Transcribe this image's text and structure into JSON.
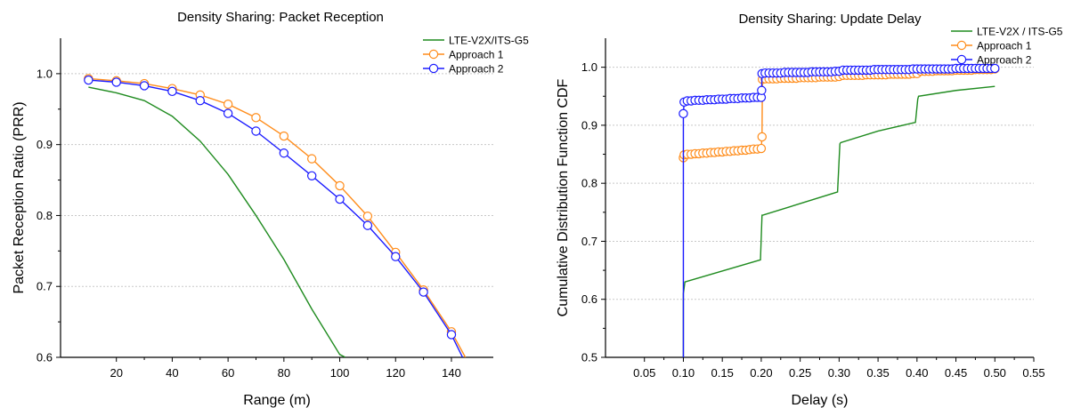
{
  "chart_data": [
    {
      "type": "line",
      "title": "Density Sharing: Packet Reception",
      "xlabel": "Range (m)",
      "ylabel": "Packet Reception Ratio (PRR)",
      "xlim": [
        0,
        155
      ],
      "ylim": [
        0.6,
        1.05
      ],
      "xticks": [
        20,
        40,
        60,
        80,
        100,
        120,
        140
      ],
      "yticks": [
        0.6,
        0.7,
        0.8,
        0.9,
        1.0
      ],
      "xtick_labels": [
        "20",
        "40",
        "60",
        "80",
        "100",
        "120",
        "140"
      ],
      "ytick_labels": [
        "0.6",
        "0.7",
        "0.8",
        "0.9",
        "1.0"
      ],
      "grid": "horizontal dotted",
      "legend_position": "top-right",
      "series": [
        {
          "name": "LTE-V2X/ITS-G5",
          "color": "#1f8b1f",
          "marker": "none",
          "x": [
            10,
            20,
            30,
            40,
            50,
            60,
            70,
            80,
            90,
            100,
            102
          ],
          "y": [
            0.981,
            0.973,
            0.962,
            0.94,
            0.905,
            0.858,
            0.8,
            0.738,
            0.668,
            0.604,
            0.6
          ]
        },
        {
          "name": "Approach 1",
          "color": "#ff8c1a",
          "marker": "circle",
          "x": [
            10,
            20,
            30,
            40,
            50,
            60,
            70,
            80,
            90,
            100,
            110,
            120,
            130,
            140,
            145
          ],
          "y": [
            0.993,
            0.99,
            0.986,
            0.979,
            0.97,
            0.957,
            0.938,
            0.912,
            0.88,
            0.842,
            0.799,
            0.748,
            0.695,
            0.636,
            0.6
          ]
        },
        {
          "name": "Approach 2",
          "color": "#1a1aff",
          "marker": "circle",
          "x": [
            10,
            20,
            30,
            40,
            50,
            60,
            70,
            80,
            90,
            100,
            110,
            120,
            130,
            140,
            144
          ],
          "y": [
            0.991,
            0.988,
            0.983,
            0.975,
            0.962,
            0.944,
            0.919,
            0.888,
            0.856,
            0.823,
            0.786,
            0.742,
            0.692,
            0.632,
            0.6
          ]
        }
      ]
    },
    {
      "type": "line",
      "title": "Density Sharing: Update Delay",
      "xlabel": "Delay (s)",
      "ylabel": "Cumulative Distribution Function CDF",
      "xlim": [
        0,
        0.55
      ],
      "ylim": [
        0.5,
        1.05
      ],
      "xticks": [
        0.05,
        0.1,
        0.15,
        0.2,
        0.25,
        0.3,
        0.35,
        0.4,
        0.45,
        0.5,
        0.55
      ],
      "yticks": [
        0.5,
        0.6,
        0.7,
        0.8,
        0.9,
        1.0
      ],
      "xtick_labels": [
        "0.05",
        "0.10",
        "0.15",
        "0.20",
        "0.25",
        "0.30",
        "0.35",
        "0.40",
        "0.45",
        "0.50",
        "0.55"
      ],
      "ytick_labels": [
        "0.5",
        "0.6",
        "0.7",
        "0.8",
        "0.9",
        "1.0"
      ],
      "grid": "horizontal dotted",
      "legend_position": "top-right",
      "series": [
        {
          "name": "LTE-V2X / ITS-G5",
          "color": "#1f8b1f",
          "marker": "none",
          "x": [
            0.1,
            0.1,
            0.102,
            0.199,
            0.201,
            0.202,
            0.298,
            0.301,
            0.302,
            0.35,
            0.398,
            0.401,
            0.402,
            0.45,
            0.5
          ],
          "y": [
            0.5,
            0.61,
            0.63,
            0.668,
            0.745,
            0.745,
            0.785,
            0.868,
            0.87,
            0.89,
            0.905,
            0.945,
            0.95,
            0.96,
            0.967
          ]
        },
        {
          "name": "Approach 1",
          "color": "#ff8c1a",
          "marker": "circle",
          "x": [
            0.1,
            0.101,
            0.105,
            0.11,
            0.115,
            0.12,
            0.125,
            0.13,
            0.135,
            0.14,
            0.145,
            0.15,
            0.155,
            0.16,
            0.165,
            0.17,
            0.175,
            0.18,
            0.185,
            0.19,
            0.195,
            0.2,
            0.201,
            0.2015,
            0.205,
            0.21,
            0.215,
            0.22,
            0.225,
            0.23,
            0.235,
            0.24,
            0.245,
            0.25,
            0.255,
            0.26,
            0.265,
            0.27,
            0.275,
            0.28,
            0.285,
            0.29,
            0.295,
            0.3,
            0.305,
            0.31,
            0.315,
            0.32,
            0.325,
            0.33,
            0.335,
            0.34,
            0.345,
            0.35,
            0.355,
            0.36,
            0.365,
            0.37,
            0.375,
            0.38,
            0.385,
            0.39,
            0.395,
            0.4,
            0.405,
            0.41,
            0.415,
            0.42,
            0.425,
            0.43,
            0.435,
            0.44,
            0.445,
            0.45,
            0.455,
            0.46,
            0.465,
            0.47,
            0.475,
            0.48,
            0.485,
            0.49,
            0.495,
            0.5
          ],
          "y": [
            0.844,
            0.849,
            0.85,
            0.85,
            0.851,
            0.851,
            0.852,
            0.852,
            0.853,
            0.853,
            0.854,
            0.854,
            0.855,
            0.855,
            0.856,
            0.856,
            0.857,
            0.857,
            0.858,
            0.859,
            0.859,
            0.86,
            0.88,
            0.979,
            0.98,
            0.98,
            0.98,
            0.98,
            0.981,
            0.981,
            0.981,
            0.981,
            0.981,
            0.982,
            0.982,
            0.982,
            0.982,
            0.982,
            0.983,
            0.983,
            0.983,
            0.983,
            0.983,
            0.984,
            0.986,
            0.986,
            0.986,
            0.986,
            0.986,
            0.986,
            0.987,
            0.987,
            0.987,
            0.987,
            0.987,
            0.987,
            0.988,
            0.988,
            0.988,
            0.988,
            0.988,
            0.988,
            0.989,
            0.989,
            0.993,
            0.993,
            0.993,
            0.993,
            0.994,
            0.994,
            0.994,
            0.994,
            0.994,
            0.995,
            0.995,
            0.995,
            0.995,
            0.995,
            0.996,
            0.996,
            0.996,
            0.996,
            0.996,
            0.997
          ]
        },
        {
          "name": "Approach 2",
          "color": "#1a1aff",
          "marker": "circle",
          "x": [
            0.1,
            0.1,
            0.101,
            0.105,
            0.11,
            0.115,
            0.12,
            0.125,
            0.13,
            0.135,
            0.14,
            0.145,
            0.15,
            0.155,
            0.16,
            0.165,
            0.17,
            0.175,
            0.18,
            0.185,
            0.19,
            0.195,
            0.2,
            0.2005,
            0.201,
            0.205,
            0.21,
            0.215,
            0.22,
            0.225,
            0.23,
            0.235,
            0.24,
            0.245,
            0.25,
            0.255,
            0.26,
            0.265,
            0.27,
            0.275,
            0.28,
            0.285,
            0.29,
            0.295,
            0.3,
            0.305,
            0.31,
            0.315,
            0.32,
            0.325,
            0.33,
            0.335,
            0.34,
            0.345,
            0.35,
            0.355,
            0.36,
            0.365,
            0.37,
            0.375,
            0.38,
            0.385,
            0.39,
            0.395,
            0.4,
            0.405,
            0.41,
            0.415,
            0.42,
            0.425,
            0.43,
            0.435,
            0.44,
            0.445,
            0.45,
            0.455,
            0.46,
            0.465,
            0.47,
            0.475,
            0.48,
            0.485,
            0.49,
            0.495,
            0.5
          ],
          "y": [
            0.5,
            0.92,
            0.94,
            0.942,
            0.942,
            0.943,
            0.943,
            0.943,
            0.944,
            0.944,
            0.944,
            0.945,
            0.945,
            0.945,
            0.946,
            0.946,
            0.946,
            0.947,
            0.947,
            0.947,
            0.948,
            0.948,
            0.948,
            0.96,
            0.989,
            0.99,
            0.99,
            0.99,
            0.99,
            0.99,
            0.991,
            0.991,
            0.991,
            0.991,
            0.991,
            0.991,
            0.991,
            0.992,
            0.992,
            0.992,
            0.992,
            0.992,
            0.992,
            0.993,
            0.993,
            0.995,
            0.995,
            0.995,
            0.995,
            0.995,
            0.995,
            0.995,
            0.995,
            0.996,
            0.996,
            0.996,
            0.996,
            0.996,
            0.996,
            0.996,
            0.996,
            0.996,
            0.996,
            0.997,
            0.997,
            0.997,
            0.997,
            0.997,
            0.997,
            0.997,
            0.997,
            0.997,
            0.997,
            0.997,
            0.998,
            0.998,
            0.998,
            0.998,
            0.998,
            0.998,
            0.998,
            0.998,
            0.998,
            0.998,
            0.998
          ]
        }
      ]
    }
  ]
}
